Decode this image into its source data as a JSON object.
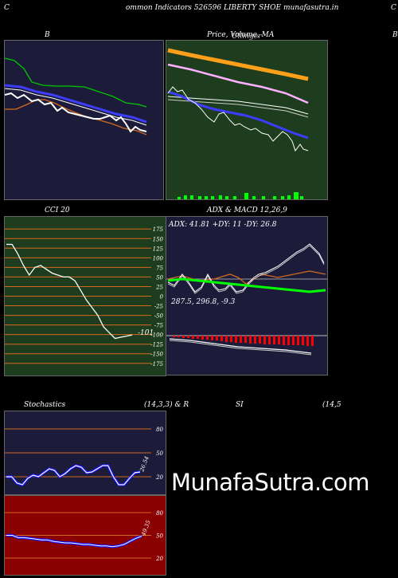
{
  "header": {
    "left_letter": "C",
    "title": "ommon  Indicators 526596  LIBERTY SHOE munafasutra.in",
    "right_letter": "C"
  },
  "panels": {
    "bollinger": {
      "label": "B"
    },
    "price": {
      "label": "Price,  Volume,  MA",
      "overlap": "Ullinger"
    },
    "right_stub": {
      "label": "B"
    },
    "cci": {
      "label": "CCI 20",
      "value_label": "-101"
    },
    "adx": {
      "label": "ADX  & MACD 12,26,9",
      "readout": "ADX: 41.81  +DY: 11  -DY: 26.8"
    },
    "macd": {
      "readout": "287.5,  296.8,  -9.3"
    },
    "stochastics": {
      "label": "Stochastics",
      "params": "(14,3,3) & R",
      "value_label": "26.54"
    },
    "rsi": {
      "label": "SI",
      "params": "(14,5",
      "value_label": "49.35"
    }
  },
  "watermark": "MunafaSutra.com",
  "colors": {
    "navy_panel": "#1c1c3a",
    "green_panel": "#1e3d1e",
    "red_panel": "#8b0000",
    "orange_grid": "#d2691e",
    "volume_green": "#00ff00",
    "macd_bar_red": "#ff0000"
  },
  "chart_data": [
    {
      "type": "line",
      "panel": "cci",
      "title": "CCI 20",
      "y_ticks": [
        175,
        150,
        125,
        100,
        75,
        50,
        25,
        0,
        -25,
        -50,
        -75,
        -100,
        -125,
        -150,
        -175
      ],
      "ylim": [
        -190,
        190
      ],
      "series": [
        {
          "values": [
            135,
            135,
            110,
            80,
            55,
            75,
            80,
            70,
            60,
            55,
            50,
            50,
            40,
            15,
            -10,
            -30,
            -50,
            -80,
            -95,
            -110,
            -107,
            -104,
            -101
          ]
        }
      ]
    },
    {
      "type": "line",
      "panel": "stochastics",
      "y_ticks": [
        80,
        50,
        20
      ],
      "ylim": [
        0,
        100
      ],
      "series": [
        {
          "values": [
            20,
            20,
            12,
            10,
            18,
            22,
            20,
            25,
            30,
            28,
            20,
            24,
            30,
            34,
            32,
            25,
            26,
            30,
            34,
            34,
            20,
            10,
            10,
            18,
            25,
            26
          ]
        }
      ]
    },
    {
      "type": "line",
      "panel": "rsi",
      "y_ticks": [
        80,
        50,
        20
      ],
      "ylim": [
        0,
        100
      ],
      "series": [
        {
          "values": [
            50,
            50,
            47,
            47,
            46,
            45,
            44,
            44,
            42,
            41,
            40,
            40,
            39,
            38,
            38,
            37,
            36,
            36,
            35,
            36,
            38,
            42,
            46,
            49
          ]
        }
      ]
    }
  ]
}
